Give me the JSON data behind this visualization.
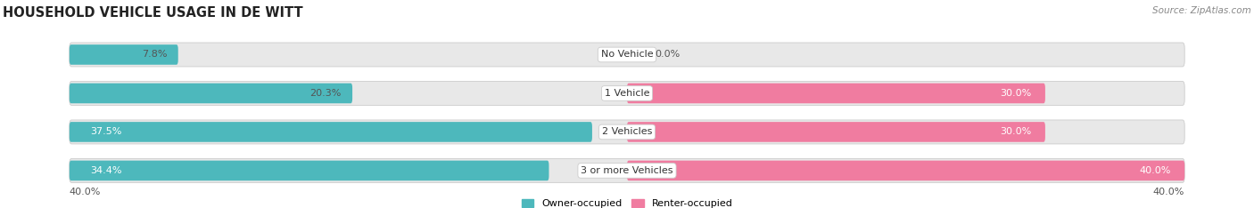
{
  "title": "HOUSEHOLD VEHICLE USAGE IN DE WITT",
  "source": "Source: ZipAtlas.com",
  "categories": [
    "No Vehicle",
    "1 Vehicle",
    "2 Vehicles",
    "3 or more Vehicles"
  ],
  "owner_values": [
    7.8,
    20.3,
    37.5,
    34.4
  ],
  "renter_values": [
    0.0,
    30.0,
    30.0,
    40.0
  ],
  "owner_color": "#4db8bc",
  "renter_color": "#f07ca0",
  "bar_bg_color": "#e8e8e8",
  "bar_border_color": "#cccccc",
  "max_value": 40.0,
  "bottom_left_label": "40.0%",
  "bottom_right_label": "40.0%",
  "legend_owner": "Owner-occupied",
  "legend_renter": "Renter-occupied",
  "title_fontsize": 10.5,
  "label_fontsize": 8,
  "category_fontsize": 8,
  "source_fontsize": 7.5
}
